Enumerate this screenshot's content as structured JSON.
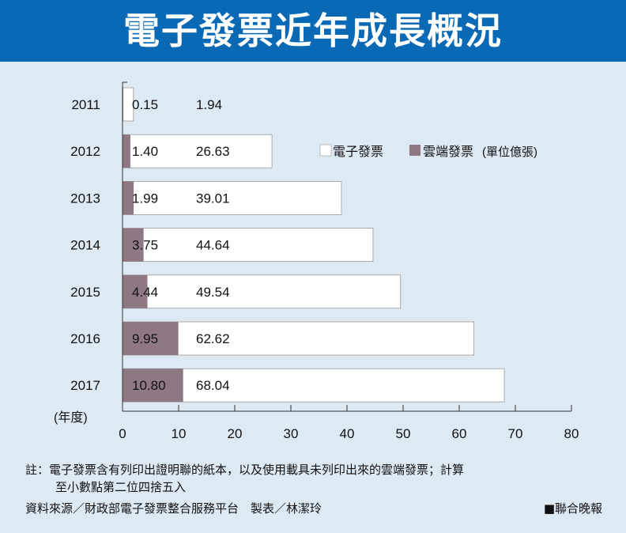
{
  "header": {
    "title": "電子發票近年成長概況"
  },
  "chart_data": {
    "type": "bar",
    "orientation": "horizontal",
    "title": "電子發票近年成長概況",
    "categories": [
      "2011",
      "2012",
      "2013",
      "2014",
      "2015",
      "2016",
      "2017"
    ],
    "series": [
      {
        "name": "電子發票",
        "color": "#ffffff",
        "values": [
          1.94,
          26.63,
          39.01,
          44.64,
          49.54,
          62.62,
          68.04
        ],
        "labels": [
          "1.94",
          "26.63",
          "39.01",
          "44.64",
          "49.54",
          "62.62",
          "68.04"
        ]
      },
      {
        "name": "雲端發票",
        "color": "#8e7884",
        "values": [
          0.15,
          1.4,
          1.99,
          3.75,
          4.44,
          9.95,
          10.8
        ],
        "labels": [
          "0.15",
          "1.40",
          "1.99",
          "3.75",
          "4.44",
          "9.95",
          "10.80"
        ]
      }
    ],
    "xlim": [
      0,
      80
    ],
    "xticks": [
      "0",
      "10",
      "20",
      "30",
      "40",
      "50",
      "60",
      "70",
      "80"
    ],
    "ylabel": "(年度)",
    "unit_note": "(單位億張)",
    "legend_placement": "top-right"
  },
  "footer": {
    "note_line1": "註：電子發票含有列印出證明聯的紙本，以及使用載具未列印出來的雲端發票；計算",
    "note_line2": "至小數點第二位四捨五入",
    "source": "資料來源／財政部電子發票整合服務平台　製表／林潔玲",
    "brand": "■聯合晚報"
  }
}
